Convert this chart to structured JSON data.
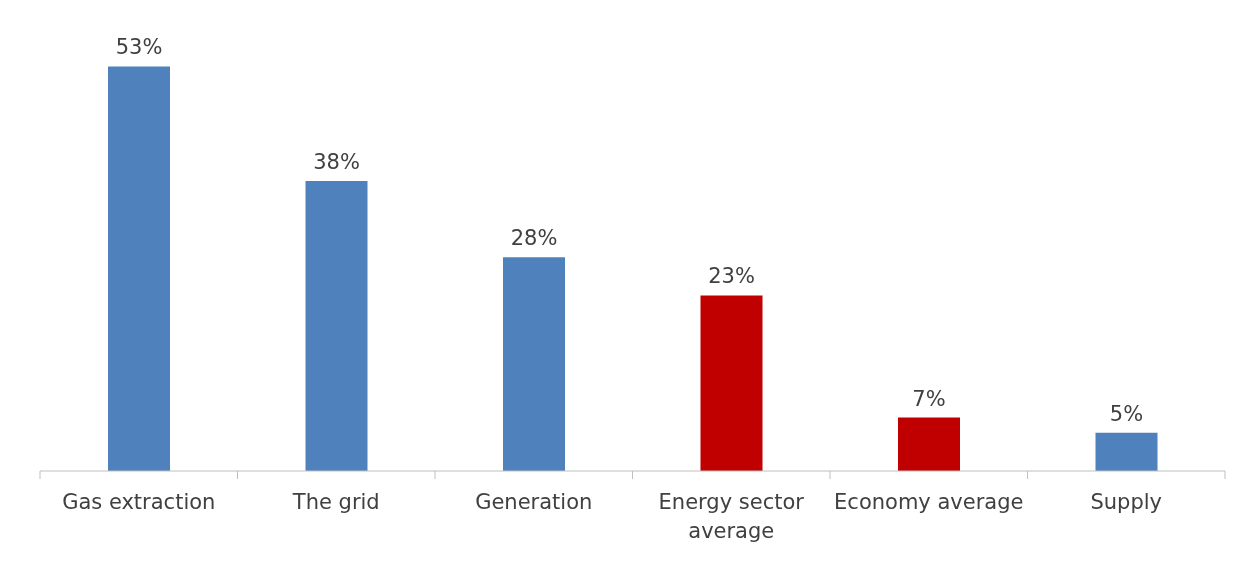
{
  "chart_data": {
    "type": "bar",
    "categories": [
      "Gas extraction",
      "The grid",
      "Generation",
      "Energy sector average",
      "Economy average",
      "Supply"
    ],
    "values": [
      53,
      38,
      28,
      23,
      7,
      5
    ],
    "colors": [
      "#4f81bd",
      "#4f81bd",
      "#4f81bd",
      "#c00000",
      "#c00000",
      "#4f81bd"
    ],
    "value_labels": [
      "53%",
      "38%",
      "28%",
      "23%",
      "7%",
      "5%"
    ],
    "grid": false,
    "legend": false
  }
}
